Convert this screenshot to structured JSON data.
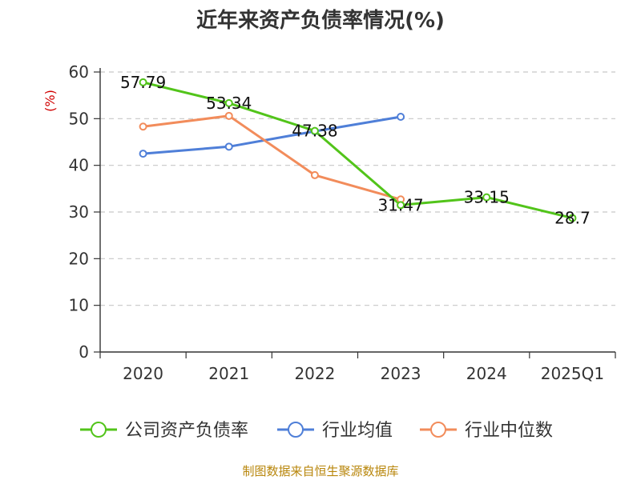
{
  "chart_data": {
    "type": "line",
    "title": "近年来资产负债率情况(%)",
    "ylabel": "(%)",
    "xlabel": "",
    "categories": [
      "2020",
      "2021",
      "2022",
      "2023",
      "2024",
      "2025Q1"
    ],
    "ylim": [
      0,
      60
    ],
    "yticks": [
      0,
      10,
      20,
      30,
      40,
      50,
      60
    ],
    "grid": "horizontal-dashed",
    "legend_position": "bottom",
    "series": [
      {
        "name": "公司资产负债率",
        "color": "#52c41a",
        "values": [
          57.79,
          53.34,
          47.38,
          31.47,
          33.15,
          28.7
        ],
        "labels": [
          "57.79",
          "53.34",
          "47.38",
          "31.47",
          "33.15",
          "28.7"
        ]
      },
      {
        "name": "行业均值",
        "color": "#4f7fd8",
        "values": [
          42.5,
          44.0,
          47.3,
          50.4,
          null,
          null
        ]
      },
      {
        "name": "行业中位数",
        "color": "#f28c5b",
        "values": [
          48.3,
          50.6,
          37.9,
          32.7,
          null,
          null
        ]
      }
    ]
  },
  "source_text": "制图数据来自恒生聚源数据库"
}
